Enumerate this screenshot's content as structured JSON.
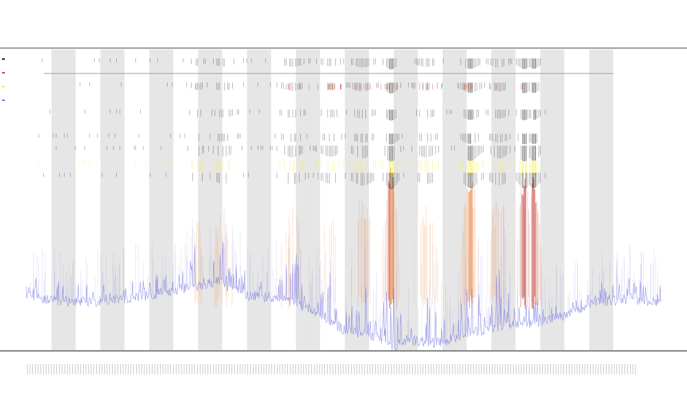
{
  "chart_data": {
    "type": "line",
    "title": "",
    "subtitle_1": "",
    "subtitle_2": "",
    "xlabel": "",
    "ylabel": "",
    "grid": false,
    "legend_placement": "top-left",
    "band_fill": "#e6e6e6",
    "colors": {
      "primary_line": "#6a6ae0",
      "orange_trace": "#e8742a",
      "red_trace": "#c0392b",
      "yellow_markers": "#f2ee3a",
      "black_markers": "#111111",
      "reference_line": "#9a9a9a",
      "axis": "#333333"
    },
    "band_starts_fraction": [
      0.04,
      0.117,
      0.194,
      0.271,
      0.348,
      0.425,
      0.502,
      0.579,
      0.656,
      0.733,
      0.81,
      0.887
    ],
    "band_width_fraction": 0.038,
    "series": [
      {
        "name": "",
        "kind": "baseline",
        "x": [
          0,
          0.05,
          0.1,
          0.15,
          0.2,
          0.25,
          0.3,
          0.35,
          0.4,
          0.45,
          0.5,
          0.55,
          0.58,
          0.6,
          0.65,
          0.7,
          0.75,
          0.8,
          0.85,
          0.9,
          0.95,
          1.0
        ],
        "values": [
          0.06,
          0.04,
          0.04,
          0.05,
          0.06,
          0.08,
          0.1,
          0.06,
          0.05,
          0.02,
          -0.04,
          -0.06,
          -0.09,
          -0.07,
          -0.08,
          -0.05,
          -0.03,
          -0.02,
          0.0,
          0.04,
          0.05,
          0.04
        ]
      }
    ],
    "activity_clusters": [
      {
        "center": 0.27,
        "spread": 0.012,
        "intensity": 0.5
      },
      {
        "center": 0.31,
        "spread": 0.02,
        "intensity": 0.55
      },
      {
        "center": 0.42,
        "spread": 0.02,
        "intensity": 0.6
      },
      {
        "center": 0.48,
        "spread": 0.02,
        "intensity": 0.55
      },
      {
        "center": 0.53,
        "spread": 0.02,
        "intensity": 0.7
      },
      {
        "center": 0.575,
        "spread": 0.012,
        "intensity": 1.0
      },
      {
        "center": 0.63,
        "spread": 0.02,
        "intensity": 0.6
      },
      {
        "center": 0.7,
        "spread": 0.016,
        "intensity": 0.9
      },
      {
        "center": 0.745,
        "spread": 0.018,
        "intensity": 0.7
      },
      {
        "center": 0.785,
        "spread": 0.012,
        "intensity": 0.95
      },
      {
        "center": 0.8,
        "spread": 0.012,
        "intensity": 0.9
      }
    ],
    "marker_rows_fraction": [
      0.03,
      0.11,
      0.2,
      0.28,
      0.32,
      0.37,
      0.41
    ],
    "legend": [
      {
        "label": "",
        "color": "#111111"
      },
      {
        "label": "",
        "color": "#c0392b"
      },
      {
        "label": "",
        "color": "#f2ee3a"
      },
      {
        "label": "",
        "color": "#6a6ae0"
      }
    ],
    "xtick_count": 230,
    "xtick_label_text": ""
  }
}
